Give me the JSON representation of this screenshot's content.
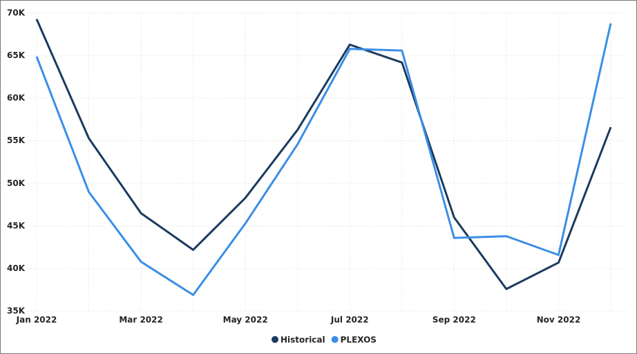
{
  "chart_data": {
    "type": "line",
    "categories": [
      "Jan 2022",
      null,
      "Mar 2022",
      null,
      "May 2022",
      null,
      "Jul 2022",
      null,
      "Sep 2022",
      null,
      "Nov 2022",
      null
    ],
    "series": [
      {
        "name": "Historical",
        "color": "#1b3a5e",
        "values": [
          69300,
          55300,
          46500,
          42200,
          48300,
          56300,
          66300,
          64200,
          46000,
          37600,
          40700,
          56600
        ]
      },
      {
        "name": "PLEXOS",
        "color": "#3a8ee6",
        "values": [
          64900,
          49000,
          40800,
          36900,
          45300,
          54600,
          65800,
          65600,
          43600,
          43800,
          41600,
          68800
        ]
      }
    ],
    "ylim": [
      35000,
      70000
    ],
    "yticks": [
      {
        "value": 35000,
        "label": "35K"
      },
      {
        "value": 40000,
        "label": "40K"
      },
      {
        "value": 45000,
        "label": "45K"
      },
      {
        "value": 50000,
        "label": "50K"
      },
      {
        "value": 55000,
        "label": "55K"
      },
      {
        "value": 60000,
        "label": "60K"
      },
      {
        "value": 65000,
        "label": "65K"
      },
      {
        "value": 70000,
        "label": "70K"
      }
    ],
    "grid": true,
    "legend": "bottom"
  }
}
